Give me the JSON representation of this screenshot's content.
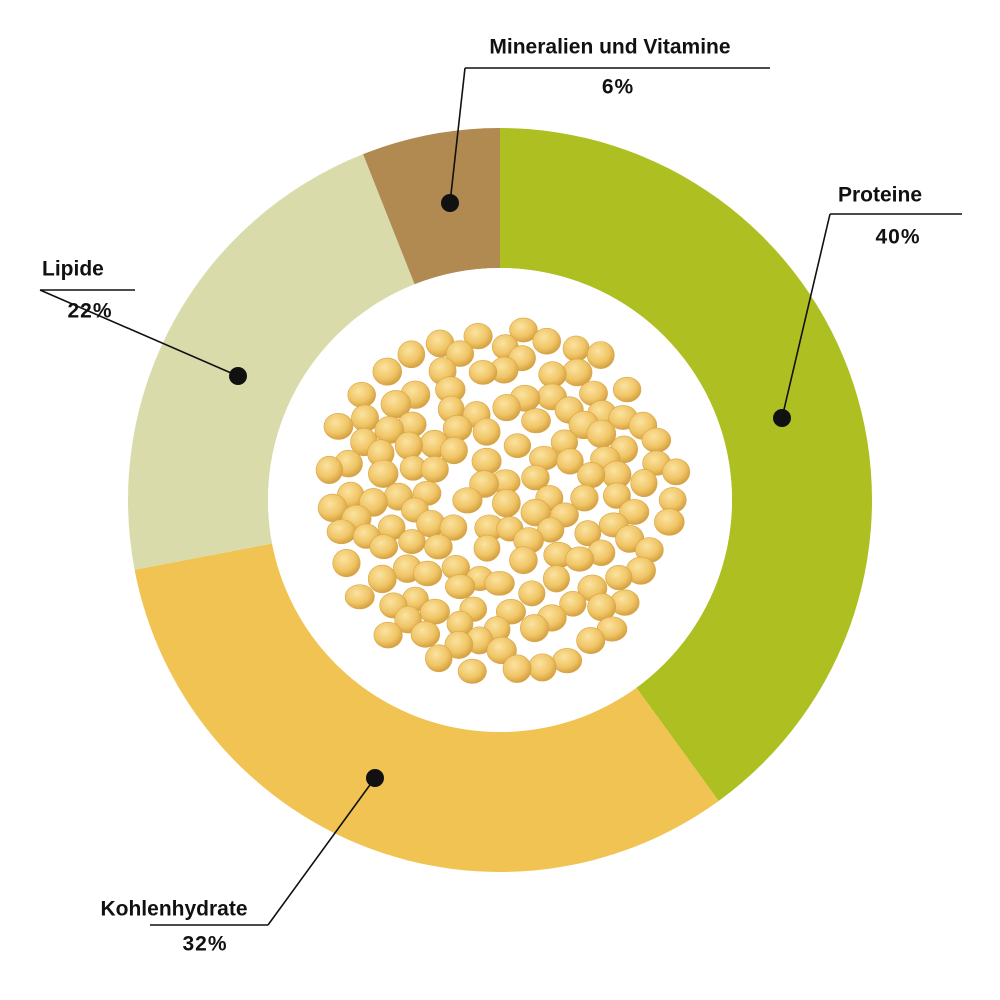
{
  "chart_data": {
    "type": "donut",
    "categories": [
      "Proteine",
      "Kohlenhydrate",
      "Lipide",
      "Mineralien und Vitamine"
    ],
    "values": [
      40,
      32,
      22,
      6
    ],
    "value_labels": [
      "40%",
      "32%",
      "22%",
      "6%"
    ],
    "colors": [
      "#aebf22",
      "#f1c353",
      "#d9dcaa",
      "#b08a50"
    ]
  }
}
